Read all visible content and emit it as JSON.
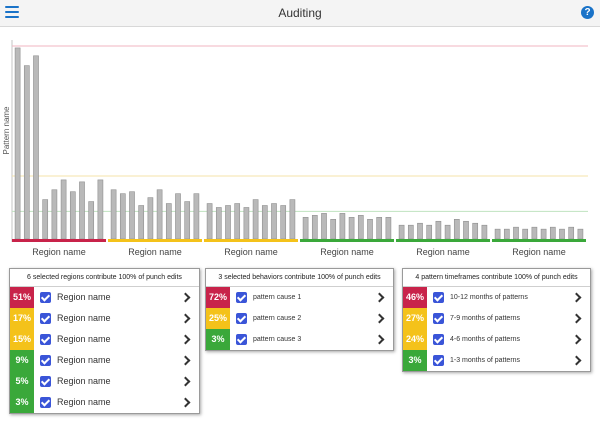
{
  "header": {
    "title": "Auditing",
    "help_label": "?"
  },
  "colors": {
    "red": "#c8234a",
    "yellow": "#f4c21a",
    "green": "#3aa83a",
    "bar": "#b9b9b9",
    "accent": "#1a73c8",
    "checkbox": "#3a55d8"
  },
  "chart_data": {
    "type": "bar",
    "ylabel": "Pattern name",
    "ylim": [
      0,
      100
    ],
    "thresholds": [
      {
        "value": 98,
        "color": "#f2b6c2"
      },
      {
        "value": 32,
        "color": "#f4e3a8"
      },
      {
        "value": 14,
        "color": "#bfe2bf"
      }
    ],
    "groups": [
      {
        "label": "Region name",
        "status": "red",
        "values": [
          97,
          88,
          93,
          20,
          25,
          30,
          24,
          29,
          19,
          30
        ]
      },
      {
        "label": "Region name",
        "status": "yellow",
        "values": [
          25,
          23,
          24,
          17,
          21,
          25,
          18,
          23,
          19,
          23
        ]
      },
      {
        "label": "Region name",
        "status": "yellow",
        "values": [
          18,
          16,
          17,
          18,
          16,
          20,
          17,
          18,
          17,
          20
        ]
      },
      {
        "label": "Region name",
        "status": "green",
        "values": [
          11,
          12,
          13,
          10,
          13,
          11,
          12,
          10,
          11,
          11
        ]
      },
      {
        "label": "Region name",
        "status": "green",
        "values": [
          7,
          7,
          8,
          7,
          9,
          7,
          10,
          9,
          8,
          7
        ]
      },
      {
        "label": "Region name",
        "status": "green",
        "values": [
          5,
          5,
          6,
          5,
          6,
          5,
          6,
          5,
          6,
          5
        ]
      }
    ]
  },
  "panels": [
    {
      "header": "6 selected regions contribute 100% of punch edits",
      "rows": [
        {
          "pct": "51%",
          "status": "red",
          "label": "Region name"
        },
        {
          "pct": "17%",
          "status": "yellow",
          "label": "Region name"
        },
        {
          "pct": "15%",
          "status": "yellow",
          "label": "Region name"
        },
        {
          "pct": "9%",
          "status": "green",
          "label": "Region name"
        },
        {
          "pct": "5%",
          "status": "green",
          "label": "Region name"
        },
        {
          "pct": "3%",
          "status": "green",
          "label": "Region name"
        }
      ]
    },
    {
      "header": "3 selected behaviors contribute 100% of punch edits",
      "rows": [
        {
          "pct": "72%",
          "status": "red",
          "label": "pattern cause 1"
        },
        {
          "pct": "25%",
          "status": "yellow",
          "label": "pattern cause 2"
        },
        {
          "pct": "3%",
          "status": "green",
          "label": "pattern cause 3"
        }
      ]
    },
    {
      "header": "4 pattern timeframes contribute 100% of punch edits",
      "rows": [
        {
          "pct": "46%",
          "status": "red",
          "label": "10-12 months of patterns"
        },
        {
          "pct": "27%",
          "status": "yellow",
          "label": "7-9 months of patterns"
        },
        {
          "pct": "24%",
          "status": "yellow",
          "label": "4-6 months of patterns"
        },
        {
          "pct": "3%",
          "status": "green",
          "label": "1-3 months of patterns"
        }
      ]
    }
  ]
}
